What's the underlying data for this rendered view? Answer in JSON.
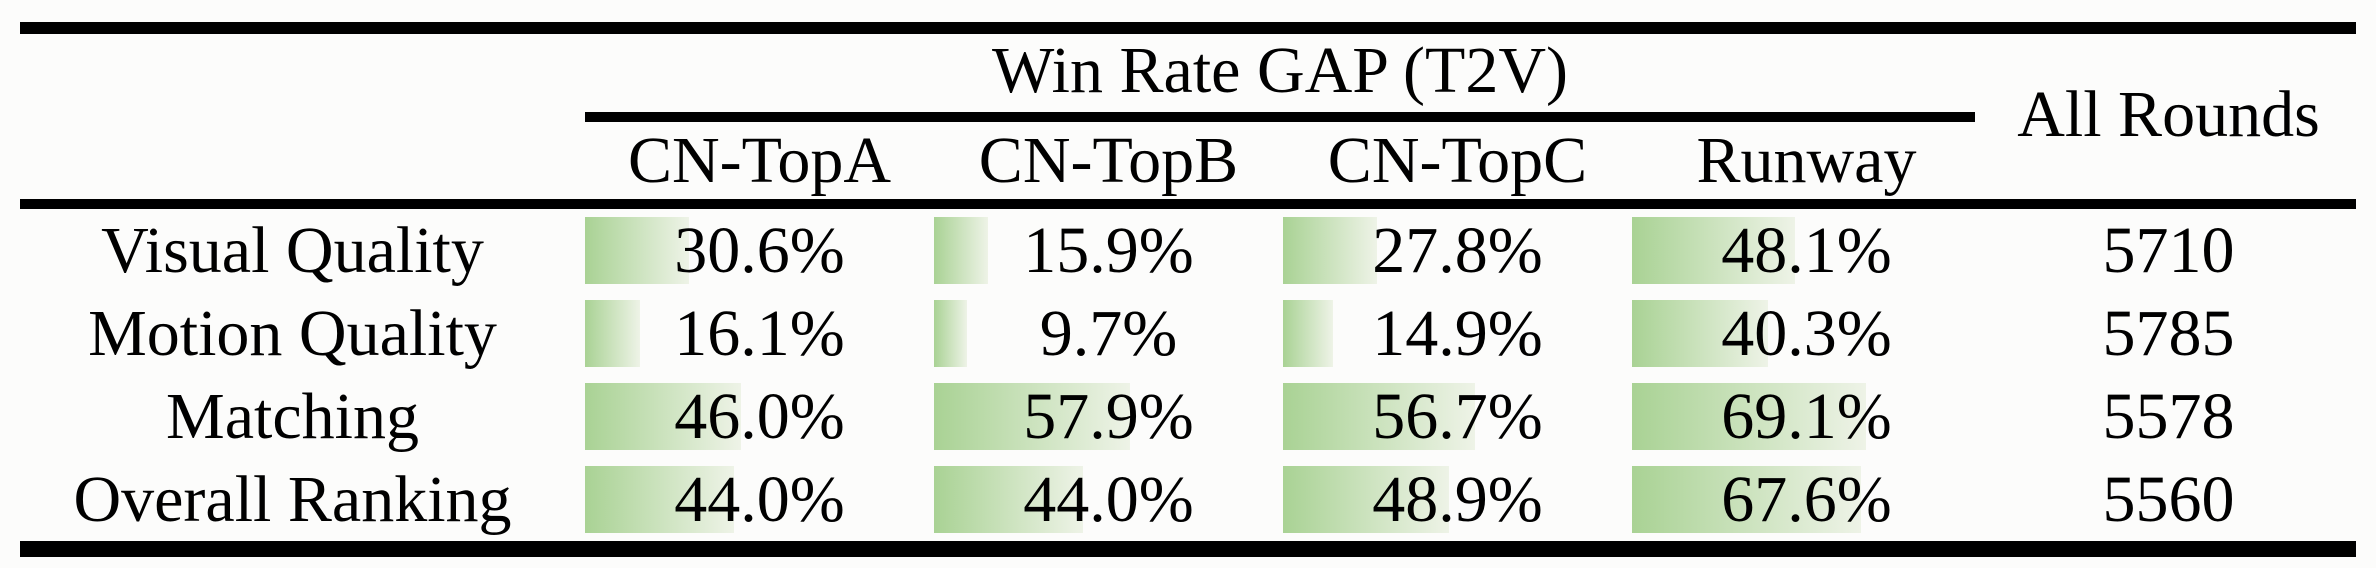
{
  "table": {
    "group_header": "Win Rate GAP (T2V)",
    "all_rounds_label": "All Rounds",
    "columns": [
      "CN-TopA",
      "CN-TopB",
      "CN-TopC",
      "Runway"
    ],
    "rows": [
      {
        "label": "Visual Quality",
        "win_rate_gap": [
          "30.6%",
          "15.9%",
          "27.8%",
          "48.1%"
        ],
        "all_rounds": "5710"
      },
      {
        "label": "Motion Quality",
        "win_rate_gap": [
          "16.1%",
          "9.7%",
          "14.9%",
          "40.3%"
        ],
        "all_rounds": "5785"
      },
      {
        "label": "Matching",
        "win_rate_gap": [
          "46.0%",
          "57.9%",
          "56.7%",
          "69.1%"
        ],
        "all_rounds": "5578"
      },
      {
        "label": "Overall Ranking",
        "win_rate_gap": [
          "44.0%",
          "44.0%",
          "48.9%",
          "67.6%"
        ],
        "all_rounds": "5560"
      }
    ]
  },
  "colors": {
    "background": "#fcfcfb",
    "rule": "#000000",
    "text": "#000000",
    "bar_gradient_start": "#a9d294",
    "bar_gradient_end": "#eef3e7"
  }
}
